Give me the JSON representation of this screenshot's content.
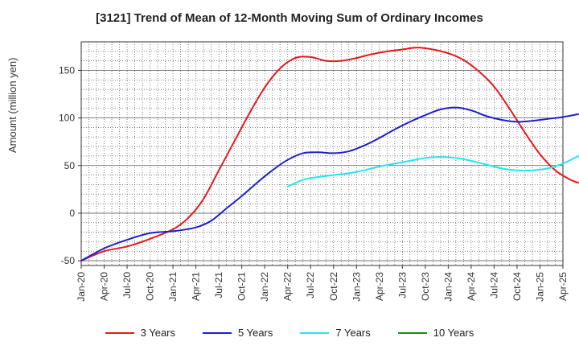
{
  "chart_data": {
    "type": "line",
    "title": "[3121]  Trend of Mean of 12-Month Moving Sum of Ordinary Incomes",
    "xlabel": "",
    "ylabel": "Amount (million yen)",
    "ylim": [
      -55,
      180
    ],
    "yticks": [
      -50,
      0,
      50,
      100,
      150
    ],
    "x_start": "2020-01",
    "x_end": "2025-04",
    "xticks": [
      "Jan-20",
      "Apr-20",
      "Jul-20",
      "Oct-20",
      "Jan-21",
      "Apr-21",
      "Jul-21",
      "Oct-21",
      "Jan-22",
      "Apr-22",
      "Jul-22",
      "Oct-22",
      "Jan-23",
      "Apr-23",
      "Jul-23",
      "Oct-23",
      "Jan-24",
      "Apr-24",
      "Jul-24",
      "Oct-24",
      "Jan-25",
      "Apr-25"
    ],
    "grid": true,
    "legend_position": "bottom",
    "series": [
      {
        "name": "3 Years",
        "color": "#e31a1c",
        "points": [
          [
            0,
            -50
          ],
          [
            3,
            -40
          ],
          [
            6,
            -35
          ],
          [
            9,
            -27
          ],
          [
            12,
            -17
          ],
          [
            14,
            -5
          ],
          [
            16,
            15
          ],
          [
            18,
            45
          ],
          [
            20,
            75
          ],
          [
            22,
            105
          ],
          [
            24,
            132
          ],
          [
            26,
            152
          ],
          [
            28,
            163
          ],
          [
            30,
            164
          ],
          [
            32,
            160
          ],
          [
            34,
            160
          ],
          [
            36,
            163
          ],
          [
            38,
            167
          ],
          [
            40,
            170
          ],
          [
            42,
            172
          ],
          [
            44,
            174
          ],
          [
            46,
            172
          ],
          [
            48,
            168
          ],
          [
            50,
            161
          ],
          [
            52,
            149
          ],
          [
            54,
            133
          ],
          [
            56,
            110
          ],
          [
            58,
            85
          ],
          [
            60,
            62
          ],
          [
            62,
            45
          ],
          [
            64,
            35
          ],
          [
            65,
            32
          ]
        ]
      },
      {
        "name": "5 Years",
        "color": "#1f1fcc",
        "points": [
          [
            0,
            -50
          ],
          [
            3,
            -37
          ],
          [
            6,
            -28
          ],
          [
            9,
            -21
          ],
          [
            12,
            -19
          ],
          [
            15,
            -15
          ],
          [
            17,
            -8
          ],
          [
            19,
            5
          ],
          [
            21,
            18
          ],
          [
            23,
            32
          ],
          [
            25,
            45
          ],
          [
            27,
            56
          ],
          [
            29,
            63
          ],
          [
            31,
            64
          ],
          [
            33,
            63
          ],
          [
            35,
            65
          ],
          [
            37,
            71
          ],
          [
            39,
            79
          ],
          [
            41,
            88
          ],
          [
            43,
            96
          ],
          [
            45,
            103
          ],
          [
            47,
            109
          ],
          [
            49,
            111
          ],
          [
            51,
            108
          ],
          [
            53,
            102
          ],
          [
            55,
            98
          ],
          [
            57,
            96
          ],
          [
            59,
            97
          ],
          [
            61,
            99
          ],
          [
            63,
            101
          ],
          [
            65,
            104
          ]
        ]
      },
      {
        "name": "7 Years",
        "color": "#22e6f0",
        "points": [
          [
            27,
            28
          ],
          [
            29,
            35
          ],
          [
            31,
            38
          ],
          [
            33,
            40
          ],
          [
            35,
            42
          ],
          [
            37,
            45
          ],
          [
            39,
            49
          ],
          [
            41,
            52
          ],
          [
            43,
            55
          ],
          [
            45,
            58
          ],
          [
            47,
            59
          ],
          [
            49,
            58
          ],
          [
            51,
            55
          ],
          [
            53,
            51
          ],
          [
            55,
            47
          ],
          [
            57,
            45
          ],
          [
            59,
            45
          ],
          [
            61,
            47
          ],
          [
            63,
            52
          ],
          [
            65,
            60
          ]
        ]
      },
      {
        "name": "10 Years",
        "color": "#1a8c1a",
        "points": []
      }
    ]
  }
}
